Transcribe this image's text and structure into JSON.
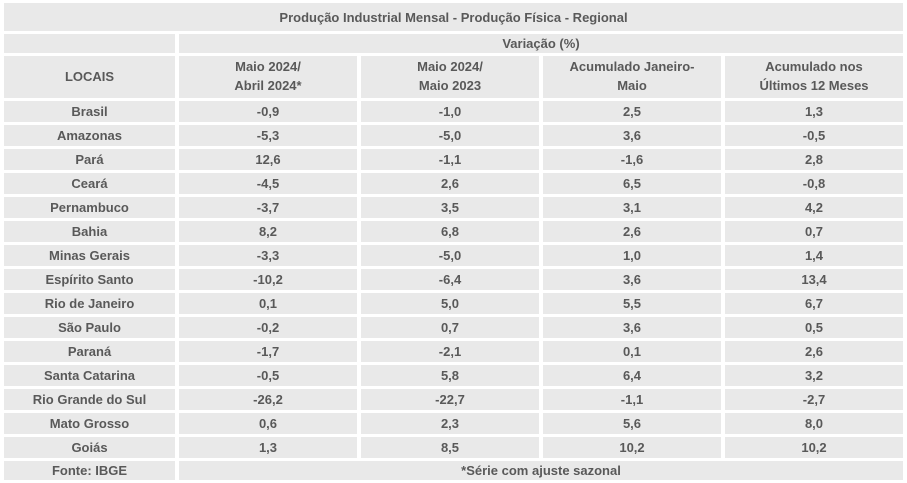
{
  "title": "Produção Industrial Mensal - Produção Física - Regional",
  "table": {
    "group_header": "Variação (%)",
    "row_header": "LOCAIS",
    "col_headers": [
      "Maio 2024/\nAbril 2024*",
      "Maio 2024/\nMaio 2023",
      "Acumulado Janeiro-\nMaio",
      "Acumulado nos\nÚltimos 12 Meses"
    ],
    "rows": [
      {
        "local": "Brasil",
        "values": [
          "-0,9",
          "-1,0",
          "2,5",
          "1,3"
        ]
      },
      {
        "local": "Amazonas",
        "values": [
          "-5,3",
          "-5,0",
          "3,6",
          "-0,5"
        ]
      },
      {
        "local": "Pará",
        "values": [
          "12,6",
          "-1,1",
          "-1,6",
          "2,8"
        ]
      },
      {
        "local": "Ceará",
        "values": [
          "-4,5",
          "2,6",
          "6,5",
          "-0,8"
        ]
      },
      {
        "local": "Pernambuco",
        "values": [
          "-3,7",
          "3,5",
          "3,1",
          "4,2"
        ]
      },
      {
        "local": "Bahia",
        "values": [
          "8,2",
          "6,8",
          "2,6",
          "0,7"
        ]
      },
      {
        "local": "Minas Gerais",
        "values": [
          "-3,3",
          "-5,0",
          "1,0",
          "1,4"
        ]
      },
      {
        "local": "Espírito Santo",
        "values": [
          "-10,2",
          "-6,4",
          "3,6",
          "13,4"
        ]
      },
      {
        "local": "Rio de Janeiro",
        "values": [
          "0,1",
          "5,0",
          "5,5",
          "6,7"
        ]
      },
      {
        "local": "São Paulo",
        "values": [
          "-0,2",
          "0,7",
          "3,6",
          "0,5"
        ]
      },
      {
        "local": "Paraná",
        "values": [
          "-1,7",
          "-2,1",
          "0,1",
          "2,6"
        ]
      },
      {
        "local": "Santa Catarina",
        "values": [
          "-0,5",
          "5,8",
          "6,4",
          "3,2"
        ]
      },
      {
        "local": "Rio Grande do Sul",
        "values": [
          "-26,2",
          "-22,7",
          "-1,1",
          "-2,7"
        ]
      },
      {
        "local": "Mato Grosso",
        "values": [
          "0,6",
          "2,3",
          "5,6",
          "8,0"
        ]
      },
      {
        "local": "Goiás",
        "values": [
          "1,3",
          "8,5",
          "10,2",
          "10,2"
        ]
      }
    ],
    "footer": {
      "source": "Fonte: IBGE",
      "note": "*Série com ajuste sazonal"
    }
  },
  "colors": {
    "cell_bg": "#e9e9e9",
    "title_bg": "#ebebeb",
    "text": "#595959",
    "title_text": "#000000",
    "gap": "#ffffff"
  },
  "chart_data": {
    "type": "table",
    "title": "Produção Industrial Mensal - Produção Física - Regional",
    "group_header": "Variação (%)",
    "row_label": "LOCAIS",
    "columns": [
      "Maio 2024/Abril 2024*",
      "Maio 2024/Maio 2023",
      "Acumulado Janeiro-Maio",
      "Acumulado nos Últimos 12 Meses"
    ],
    "categories": [
      "Brasil",
      "Amazonas",
      "Pará",
      "Ceará",
      "Pernambuco",
      "Bahia",
      "Minas Gerais",
      "Espírito Santo",
      "Rio de Janeiro",
      "São Paulo",
      "Paraná",
      "Santa Catarina",
      "Rio Grande do Sul",
      "Mato Grosso",
      "Goiás"
    ],
    "series": [
      {
        "name": "Maio 2024/Abril 2024*",
        "values": [
          -0.9,
          -5.3,
          12.6,
          -4.5,
          -3.7,
          8.2,
          -3.3,
          -10.2,
          0.1,
          -0.2,
          -1.7,
          -0.5,
          -26.2,
          0.6,
          1.3
        ]
      },
      {
        "name": "Maio 2024/Maio 2023",
        "values": [
          -1.0,
          -5.0,
          -1.1,
          2.6,
          3.5,
          6.8,
          -5.0,
          -6.4,
          5.0,
          0.7,
          -2.1,
          5.8,
          -22.7,
          2.3,
          8.5
        ]
      },
      {
        "name": "Acumulado Janeiro-Maio",
        "values": [
          2.5,
          3.6,
          -1.6,
          6.5,
          3.1,
          2.6,
          1.0,
          3.6,
          5.5,
          3.6,
          0.1,
          6.4,
          -1.1,
          5.6,
          10.2
        ]
      },
      {
        "name": "Acumulado nos Últimos 12 Meses",
        "values": [
          1.3,
          -0.5,
          2.8,
          -0.8,
          4.2,
          0.7,
          1.4,
          13.4,
          6.7,
          0.5,
          2.6,
          3.2,
          -2.7,
          8.0,
          10.2
        ]
      }
    ],
    "source": "Fonte: IBGE",
    "note": "*Série com ajuste sazonal"
  }
}
